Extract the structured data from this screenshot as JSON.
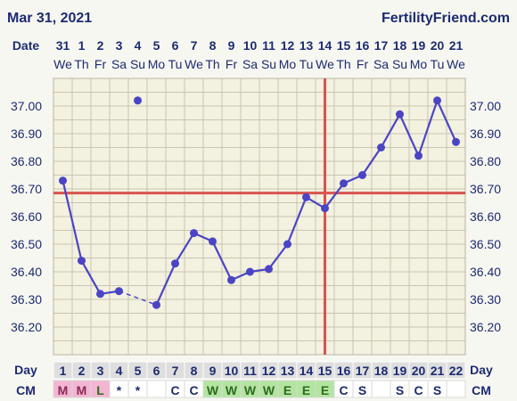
{
  "header": {
    "date_text": "Mar 31, 2021",
    "brand": "FertilityFriend.com"
  },
  "labels": {
    "date": "Date",
    "day": "Day",
    "cm": "CM"
  },
  "colors": {
    "navy": "#1d2b73",
    "line": "#4a45c4",
    "coverline": "#d9534f",
    "ovulation": "#d9534f",
    "grid": "#c9c5b0",
    "plot_bg": "#f3f1df",
    "bg": "#f7f7f1",
    "cm_M": "#f2b6d2",
    "cm_W": "#b3e5a1",
    "cm_E": "#b3e5a1",
    "cm_blank": "#ffffff"
  },
  "chart_data": {
    "type": "line",
    "title": "Mar 31, 2021",
    "ylim": [
      36.1,
      37.1
    ],
    "yticks": [
      "37.00",
      "36.90",
      "36.80",
      "36.70",
      "36.60",
      "36.50",
      "36.40",
      "36.30",
      "36.20"
    ],
    "dates": [
      "31",
      "1",
      "2",
      "3",
      "4",
      "5",
      "6",
      "7",
      "8",
      "9",
      "10",
      "11",
      "12",
      "13",
      "14",
      "15",
      "16",
      "17",
      "18",
      "19",
      "20",
      "21"
    ],
    "weekdays": [
      "We",
      "Th",
      "Fr",
      "Sa",
      "Su",
      "Mo",
      "Tu",
      "We",
      "Th",
      "Fr",
      "Sa",
      "Su",
      "Mo",
      "Tu",
      "We",
      "Th",
      "Fr",
      "Sa",
      "Su",
      "Mo",
      "Tu",
      "We"
    ],
    "cycle_days": [
      "1",
      "2",
      "3",
      "4",
      "5",
      "6",
      "7",
      "8",
      "9",
      "10",
      "11",
      "12",
      "13",
      "14",
      "15",
      "16",
      "17",
      "18",
      "19",
      "20",
      "21",
      "22"
    ],
    "cervical_mucus": [
      "M",
      "M",
      "L",
      "*",
      "*",
      "",
      "C",
      "C",
      "W",
      "W",
      "W",
      "W",
      "E",
      "E",
      "E",
      "C",
      "S",
      "",
      "S",
      "C",
      "S",
      ""
    ],
    "temperatures": [
      36.73,
      36.44,
      36.32,
      36.33,
      37.02,
      36.28,
      36.43,
      36.54,
      36.51,
      36.37,
      36.4,
      36.41,
      36.5,
      36.67,
      36.63,
      36.72,
      36.75,
      36.85,
      36.97,
      36.82,
      37.02,
      36.87
    ],
    "discarded_day": 5,
    "dashed_segments": [
      [
        4,
        6
      ]
    ],
    "coverline": 36.685,
    "ovulation_day": 15
  }
}
